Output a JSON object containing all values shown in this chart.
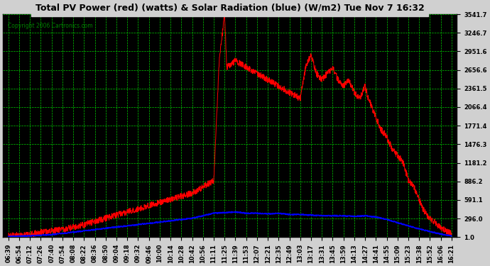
{
  "title": "Total PV Power (red) (watts) & Solar Radiation (blue) (W/m2) Tue Nov 7 16:32",
  "copyright": "Copyright 2006 Cartronics.com",
  "yticks": [
    1.0,
    296.0,
    591.1,
    886.2,
    1181.2,
    1476.3,
    1771.4,
    2066.4,
    2361.5,
    2656.6,
    2951.6,
    3246.7,
    3541.7
  ],
  "xtick_labels": [
    "06:39",
    "06:54",
    "07:12",
    "07:26",
    "07:40",
    "07:54",
    "08:08",
    "08:22",
    "08:36",
    "08:50",
    "09:04",
    "09:18",
    "09:32",
    "09:46",
    "10:00",
    "10:14",
    "10:28",
    "10:42",
    "10:56",
    "11:11",
    "11:25",
    "11:39",
    "11:53",
    "12:07",
    "12:21",
    "12:35",
    "12:49",
    "13:03",
    "13:17",
    "13:31",
    "13:45",
    "13:59",
    "14:13",
    "14:27",
    "14:41",
    "14:55",
    "15:09",
    "15:23",
    "15:38",
    "15:52",
    "16:06",
    "16:21"
  ],
  "bg_color": "#000000",
  "grid_color": "#00cc00",
  "title_color": "#000000",
  "fig_bg": "#d0d0d0",
  "ymin": 1.0,
  "ymax": 3541.7
}
